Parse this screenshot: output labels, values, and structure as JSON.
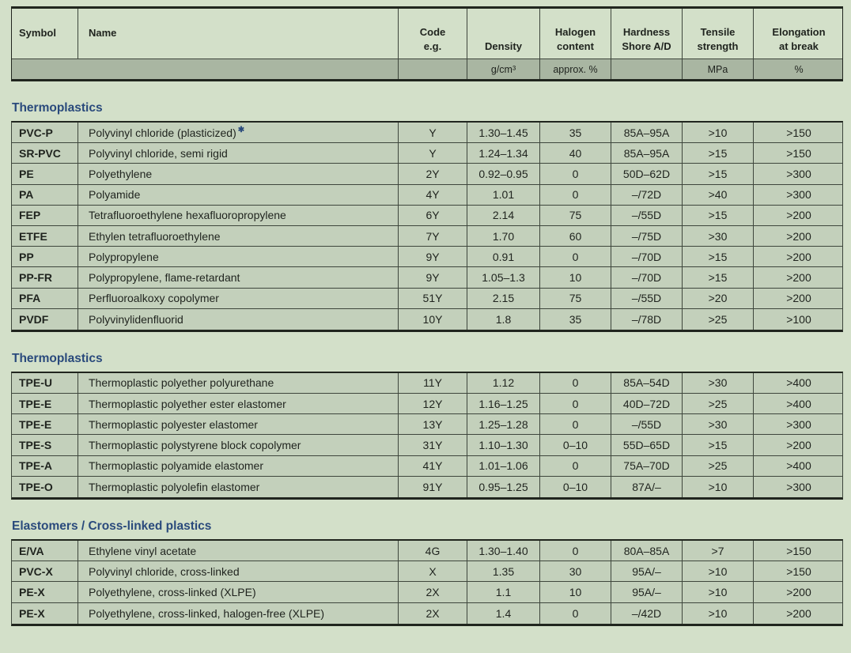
{
  "colors": {
    "page_bg": "#d3e0c9",
    "row_bg": "#c3d0bb",
    "units_bg": "#a9b6a2",
    "thin_line": "#3e463c",
    "frame_line": "#20251e",
    "text": "#1f231e",
    "heading_blue": "#2a4a7c"
  },
  "header": {
    "columns": [
      {
        "id": "symbol",
        "label": "Symbol",
        "unit": ""
      },
      {
        "id": "name",
        "label": "Name",
        "unit": ""
      },
      {
        "id": "code",
        "label": "Code\ne.g.",
        "unit": ""
      },
      {
        "id": "density",
        "label": "Density",
        "unit": "g/cm³"
      },
      {
        "id": "halogen",
        "label": "Halogen\ncontent",
        "unit": "approx. %"
      },
      {
        "id": "hardness",
        "label": "Hardness\nShore A/D",
        "unit": ""
      },
      {
        "id": "tensile",
        "label": "Tensile\nstrength",
        "unit": "MPa"
      },
      {
        "id": "elongation",
        "label": "Elongation\nat break",
        "unit": "%"
      }
    ]
  },
  "sections": [
    {
      "title": "Thermoplastics",
      "rows": [
        {
          "symbol": "PVC-P",
          "name": "Polyvinyl chloride (plasticized)",
          "footnote": "✱",
          "code": "Y",
          "density": "1.30–1.45",
          "halogen": "35",
          "hardness": "85A–95A",
          "tensile": ">10",
          "elongation": ">150"
        },
        {
          "symbol": "SR-PVC",
          "name": "Polyvinyl chloride, semi rigid",
          "code": "Y",
          "density": "1.24–1.34",
          "halogen": "40",
          "hardness": "85A–95A",
          "tensile": ">15",
          "elongation": ">150"
        },
        {
          "symbol": "PE",
          "name": "Polyethylene",
          "code": "2Y",
          "density": "0.92–0.95",
          "halogen": "0",
          "hardness": "50D–62D",
          "tensile": ">15",
          "elongation": ">300"
        },
        {
          "symbol": "PA",
          "name": "Polyamide",
          "code": "4Y",
          "density": "1.01",
          "halogen": "0",
          "hardness": "–/72D",
          "tensile": ">40",
          "elongation": ">300"
        },
        {
          "symbol": "FEP",
          "name": "Tetrafluoroethylene hexafluoropropylene",
          "code": "6Y",
          "density": "2.14",
          "halogen": "75",
          "hardness": "–/55D",
          "tensile": ">15",
          "elongation": ">200"
        },
        {
          "symbol": "ETFE",
          "name": "Ethylen tetrafluoroethylene",
          "code": "7Y",
          "density": "1.70",
          "halogen": "60",
          "hardness": "–/75D",
          "tensile": ">30",
          "elongation": ">200"
        },
        {
          "symbol": "PP",
          "name": "Polypropylene",
          "code": "9Y",
          "density": "0.91",
          "halogen": "0",
          "hardness": "–/70D",
          "tensile": ">15",
          "elongation": ">200"
        },
        {
          "symbol": "PP-FR",
          "name": "Polypropylene, flame-retardant",
          "code": "9Y",
          "density": "1.05–1.3",
          "halogen": "10",
          "hardness": "–/70D",
          "tensile": ">15",
          "elongation": ">200"
        },
        {
          "symbol": "PFA",
          "name": "Perfluoroalkoxy copolymer",
          "code": "51Y",
          "density": "2.15",
          "halogen": "75",
          "hardness": "–/55D",
          "tensile": ">20",
          "elongation": ">200"
        },
        {
          "symbol": "PVDF",
          "name": "Polyvinylidenfluorid",
          "code": "10Y",
          "density": "1.8",
          "halogen": "35",
          "hardness": "–/78D",
          "tensile": ">25",
          "elongation": ">100"
        }
      ]
    },
    {
      "title": "Thermoplastics",
      "rows": [
        {
          "symbol": "TPE-U",
          "name": "Thermoplastic polyether polyurethane",
          "code": "11Y",
          "density": "1.12",
          "halogen": "0",
          "hardness": "85A–54D",
          "tensile": ">30",
          "elongation": ">400"
        },
        {
          "symbol": "TPE-E",
          "name": "Thermoplastic polyether ester elastomer",
          "code": "12Y",
          "density": "1.16–1.25",
          "halogen": "0",
          "hardness": "40D–72D",
          "tensile": ">25",
          "elongation": ">400"
        },
        {
          "symbol": "TPE-E",
          "name": "Thermoplastic polyester elastomer",
          "code": "13Y",
          "density": "1.25–1.28",
          "halogen": "0",
          "hardness": "–/55D",
          "tensile": ">30",
          "elongation": ">300"
        },
        {
          "symbol": "TPE-S",
          "name": "Thermoplastic polystyrene block copolymer",
          "code": "31Y",
          "density": "1.10–1.30",
          "halogen": "0–10",
          "hardness": "55D–65D",
          "tensile": ">15",
          "elongation": ">200"
        },
        {
          "symbol": "TPE-A",
          "name": "Thermoplastic polyamide elastomer",
          "code": "41Y",
          "density": "1.01–1.06",
          "halogen": "0",
          "hardness": "75A–70D",
          "tensile": ">25",
          "elongation": ">400"
        },
        {
          "symbol": "TPE-O",
          "name": "Thermoplastic polyolefin elastomer",
          "code": "91Y",
          "density": "0.95–1.25",
          "halogen": "0–10",
          "hardness": "87A/–",
          "tensile": ">10",
          "elongation": ">300"
        }
      ]
    },
    {
      "title": "Elastomers / Cross-linked plastics",
      "rows": [
        {
          "symbol": "E/VA",
          "name": "Ethylene vinyl acetate",
          "code": "4G",
          "density": "1.30–1.40",
          "halogen": "0",
          "hardness": "80A–85A",
          "tensile": ">7",
          "elongation": ">150"
        },
        {
          "symbol": "PVC-X",
          "name": "Polyvinyl chloride, cross-linked",
          "code": "X",
          "density": "1.35",
          "halogen": "30",
          "hardness": "95A/–",
          "tensile": ">10",
          "elongation": ">150"
        },
        {
          "symbol": "PE-X",
          "name": "Polyethylene, cross-linked (XLPE)",
          "code": "2X",
          "density": "1.1",
          "halogen": "10",
          "hardness": "95A/–",
          "tensile": ">10",
          "elongation": ">200"
        },
        {
          "symbol": "PE-X",
          "name": "Polyethylene, cross-linked, halogen-free (XLPE)",
          "code": "2X",
          "density": "1.4",
          "halogen": "0",
          "hardness": "–/42D",
          "tensile": ">10",
          "elongation": ">200"
        }
      ]
    }
  ]
}
